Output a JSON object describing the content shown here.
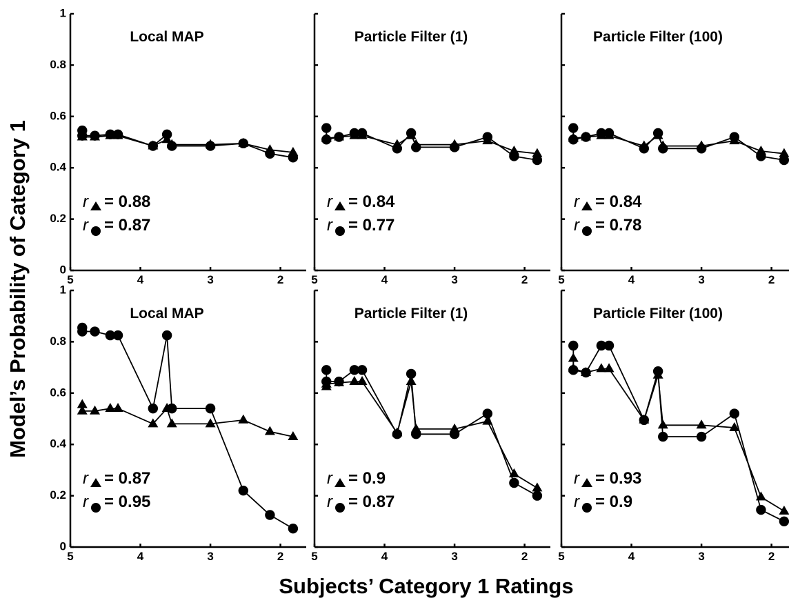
{
  "xlabel": "Subjects’ Category 1 Ratings",
  "ylabel": "Model’s Probability of Category 1",
  "chart_data": [
    {
      "type": "line",
      "title": "Local MAP",
      "xlim": [
        5,
        1.75
      ],
      "ylim": [
        0,
        1
      ],
      "xticks": [
        "5",
        "4",
        "3",
        "2"
      ],
      "yticks": [
        "0",
        "0.2",
        "0.4",
        "0.6",
        "0.8",
        "1"
      ],
      "r_triangle": "= 0.88",
      "r_circle": "= 0.87",
      "series": [
        {
          "marker": "triangle",
          "x": [
            4.83,
            4.83,
            4.65,
            4.43,
            4.32,
            3.82,
            3.62,
            3.55,
            3.0,
            2.53,
            2.15,
            1.82
          ],
          "y": [
            0.52,
            0.52,
            0.52,
            0.525,
            0.525,
            0.485,
            0.51,
            0.49,
            0.49,
            0.495,
            0.47,
            0.46
          ]
        },
        {
          "marker": "circle",
          "x": [
            4.83,
            4.83,
            4.65,
            4.43,
            4.32,
            3.82,
            3.62,
            3.55,
            3.0,
            2.53,
            2.15,
            1.82
          ],
          "y": [
            0.545,
            0.525,
            0.525,
            0.53,
            0.53,
            0.485,
            0.53,
            0.485,
            0.485,
            0.495,
            0.455,
            0.44
          ]
        }
      ]
    },
    {
      "type": "line",
      "title": "Particle Filter (1)",
      "xlim": [
        5,
        1.75
      ],
      "ylim": [
        0,
        1
      ],
      "xticks": [
        "5",
        "4",
        "3",
        "2"
      ],
      "yticks": [],
      "r_triangle": "= 0.84",
      "r_circle": "= 0.77",
      "series": [
        {
          "marker": "triangle",
          "x": [
            4.83,
            4.83,
            4.65,
            4.43,
            4.32,
            3.82,
            3.62,
            3.55,
            3.0,
            2.53,
            2.15,
            1.82
          ],
          "y": [
            0.515,
            0.515,
            0.52,
            0.525,
            0.525,
            0.49,
            0.525,
            0.49,
            0.49,
            0.505,
            0.465,
            0.455
          ]
        },
        {
          "marker": "circle",
          "x": [
            4.83,
            4.83,
            4.65,
            4.43,
            4.32,
            3.82,
            3.62,
            3.55,
            3.0,
            2.53,
            2.15,
            1.82
          ],
          "y": [
            0.555,
            0.51,
            0.52,
            0.535,
            0.535,
            0.475,
            0.535,
            0.48,
            0.48,
            0.52,
            0.445,
            0.43
          ]
        }
      ]
    },
    {
      "type": "line",
      "title": "Particle Filter (100)",
      "xlim": [
        5,
        1.75
      ],
      "ylim": [
        0,
        1
      ],
      "xticks": [
        "5",
        "4",
        "3",
        "2"
      ],
      "yticks": [],
      "r_triangle": "= 0.84",
      "r_circle": "= 0.78",
      "series": [
        {
          "marker": "triangle",
          "x": [
            4.83,
            4.83,
            4.65,
            4.43,
            4.32,
            3.82,
            3.62,
            3.55,
            3.0,
            2.53,
            2.15,
            1.82
          ],
          "y": [
            0.515,
            0.515,
            0.52,
            0.525,
            0.525,
            0.485,
            0.525,
            0.485,
            0.485,
            0.505,
            0.465,
            0.455
          ]
        },
        {
          "marker": "circle",
          "x": [
            4.83,
            4.83,
            4.65,
            4.43,
            4.32,
            3.82,
            3.62,
            3.55,
            3.0,
            2.53,
            2.15,
            1.82
          ],
          "y": [
            0.555,
            0.51,
            0.52,
            0.535,
            0.535,
            0.475,
            0.535,
            0.475,
            0.475,
            0.52,
            0.445,
            0.43
          ]
        }
      ]
    },
    {
      "type": "line",
      "title": "Local MAP",
      "xlim": [
        5,
        1.75
      ],
      "ylim": [
        0,
        1
      ],
      "xticks": [
        "5",
        "4",
        "3",
        "2"
      ],
      "yticks": [
        "0",
        "0.2",
        "0.4",
        "0.6",
        "0.8",
        "1"
      ],
      "r_triangle": "= 0.87",
      "r_circle": "= 0.95",
      "series": [
        {
          "marker": "triangle",
          "x": [
            4.83,
            4.83,
            4.65,
            4.43,
            4.32,
            3.82,
            3.62,
            3.55,
            3.0,
            2.53,
            2.15,
            1.82
          ],
          "y": [
            0.555,
            0.53,
            0.53,
            0.54,
            0.54,
            0.48,
            0.54,
            0.48,
            0.48,
            0.495,
            0.45,
            0.43
          ]
        },
        {
          "marker": "circle",
          "x": [
            4.83,
            4.83,
            4.65,
            4.43,
            4.32,
            3.82,
            3.62,
            3.55,
            3.0,
            2.53,
            2.15,
            1.82
          ],
          "y": [
            0.855,
            0.84,
            0.84,
            0.825,
            0.825,
            0.54,
            0.825,
            0.54,
            0.54,
            0.22,
            0.125,
            0.072
          ]
        }
      ]
    },
    {
      "type": "line",
      "title": "Particle Filter (1)",
      "xlim": [
        5,
        1.75
      ],
      "ylim": [
        0,
        1
      ],
      "xticks": [
        "5",
        "4",
        "3",
        "2"
      ],
      "yticks": [],
      "r_triangle": "= 0.9",
      "r_circle": "= 0.87",
      "series": [
        {
          "marker": "triangle",
          "x": [
            4.83,
            4.83,
            4.65,
            4.43,
            4.32,
            3.82,
            3.62,
            3.55,
            3.0,
            2.53,
            2.15,
            1.82
          ],
          "y": [
            0.625,
            0.635,
            0.64,
            0.645,
            0.645,
            0.445,
            0.645,
            0.46,
            0.46,
            0.49,
            0.285,
            0.23
          ]
        },
        {
          "marker": "circle",
          "x": [
            4.83,
            4.83,
            4.65,
            4.43,
            4.32,
            3.82,
            3.62,
            3.55,
            3.0,
            2.53,
            2.15,
            1.82
          ],
          "y": [
            0.69,
            0.645,
            0.645,
            0.69,
            0.69,
            0.44,
            0.675,
            0.44,
            0.44,
            0.52,
            0.25,
            0.2
          ]
        }
      ]
    },
    {
      "type": "line",
      "title": "Particle Filter (100)",
      "xlim": [
        5,
        1.75
      ],
      "ylim": [
        0,
        1
      ],
      "xticks": [
        "5",
        "4",
        "3",
        "2"
      ],
      "yticks": [],
      "r_triangle": "= 0.93",
      "r_circle": "= 0.9",
      "series": [
        {
          "marker": "triangle",
          "x": [
            4.83,
            4.83,
            4.65,
            4.43,
            4.32,
            3.82,
            3.62,
            3.55,
            3.0,
            2.53,
            2.15,
            1.82
          ],
          "y": [
            0.735,
            0.695,
            0.68,
            0.695,
            0.695,
            0.495,
            0.67,
            0.475,
            0.475,
            0.465,
            0.195,
            0.14
          ]
        },
        {
          "marker": "circle",
          "x": [
            4.83,
            4.83,
            4.65,
            4.43,
            4.32,
            3.82,
            3.62,
            3.55,
            3.0,
            2.53,
            2.15,
            1.82
          ],
          "y": [
            0.785,
            0.69,
            0.68,
            0.785,
            0.785,
            0.495,
            0.685,
            0.43,
            0.43,
            0.52,
            0.145,
            0.1
          ]
        }
      ]
    }
  ]
}
